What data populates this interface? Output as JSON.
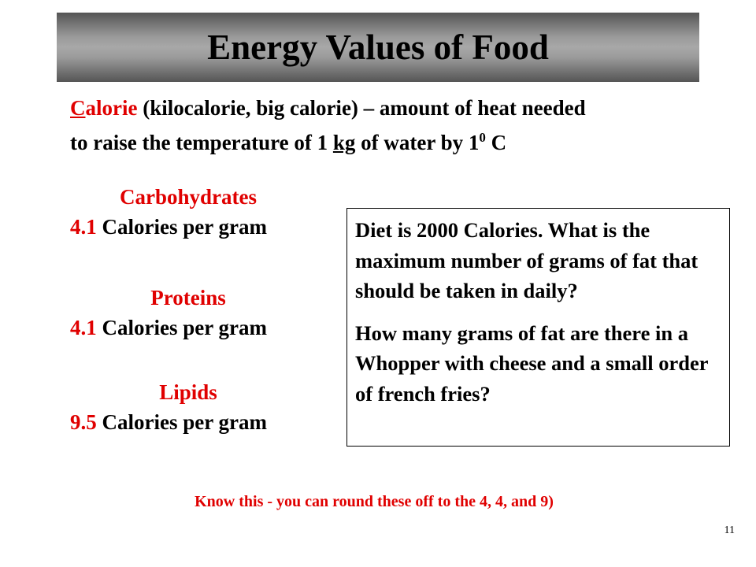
{
  "title": "Energy Values of Food",
  "definition": {
    "term_first": "C",
    "term_rest": "alorie",
    "line1_rest": " (kilocalorie, big calorie) – amount of heat needed",
    "line2_pre": "to raise the temperature of 1 ",
    "line2_unit": "kg",
    "line2_mid": " of water by 1",
    "line2_sup": "0",
    "line2_post": " C"
  },
  "nutrients": [
    {
      "name": "Carbohydrates",
      "value": "4.1",
      "unit": " Calories per gram"
    },
    {
      "name": "Proteins",
      "value": "4.1",
      "unit": " Calories per gram"
    },
    {
      "name": "Lipids",
      "value": "9.5",
      "unit": " Calories per gram"
    }
  ],
  "question_box": {
    "q1": "Diet is 2000 Calories.  What is the maximum number of grams of fat that should be taken in daily?",
    "q2": "How many grams of fat are there in a Whopper with cheese and a small order of french fries?"
  },
  "footer": "Know this - you can round these off to the 4, 4, and 9)",
  "page_number": "11",
  "colors": {
    "accent": "#e00000"
  }
}
